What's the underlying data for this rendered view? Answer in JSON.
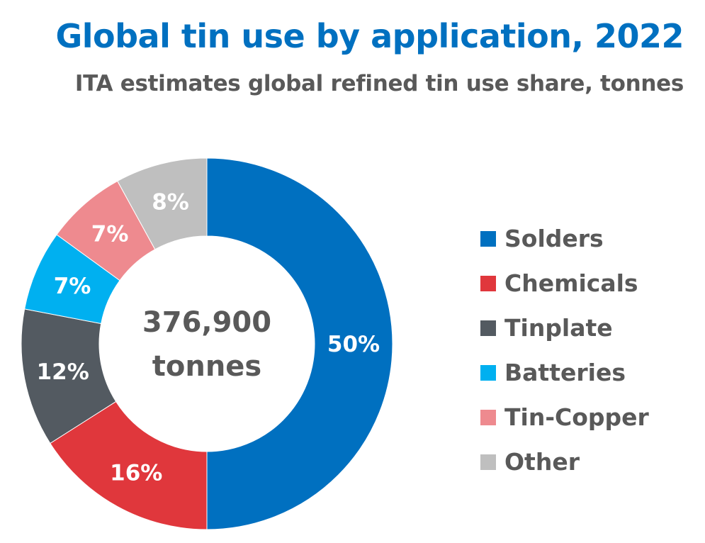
{
  "chart_data": {
    "type": "pie",
    "title": "Global tin use by application, 2022",
    "subtitle": "ITA estimates global refined tin use share, tonnes",
    "center_label": {
      "line1": "376,900",
      "line2": "tonnes"
    },
    "legend_position": "right",
    "slices": [
      {
        "name": "Solders",
        "value": 50,
        "label": "50%",
        "color": "#0070c0"
      },
      {
        "name": "Chemicals",
        "value": 16,
        "label": "16%",
        "color": "#e0373c"
      },
      {
        "name": "Tinplate",
        "value": 12,
        "label": "12%",
        "color": "#535a61"
      },
      {
        "name": "Batteries",
        "value": 7,
        "label": "7%",
        "color": "#00b0f0"
      },
      {
        "name": "Tin-Copper",
        "value": 7,
        "label": "7%",
        "color": "#ee8a8f"
      },
      {
        "name": "Other",
        "value": 8,
        "label": "8%",
        "color": "#bfbfbf"
      }
    ]
  }
}
